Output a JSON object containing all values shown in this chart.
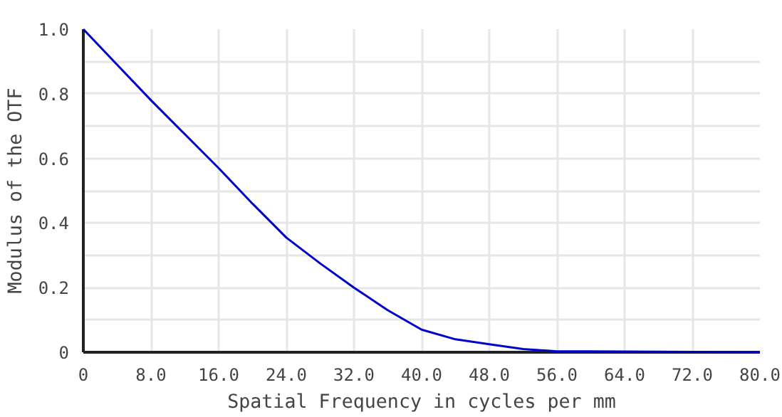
{
  "chart_data": {
    "type": "line",
    "xlabel": "Spatial Frequency in cycles per mm",
    "ylabel": "Modulus of the OTF",
    "x": [
      0,
      4,
      8,
      12,
      16,
      20,
      24,
      28,
      32,
      36,
      40,
      44,
      48,
      52,
      56,
      60,
      64,
      72,
      80
    ],
    "series": [
      {
        "color": "#0000cc",
        "values": [
          1.0,
          0.89,
          0.78,
          0.675,
          0.57,
          0.46,
          0.355,
          0.275,
          0.2,
          0.13,
          0.07,
          0.04,
          0.025,
          0.01,
          0.003,
          0.003,
          0.002,
          0.001,
          0.0
        ]
      }
    ],
    "xlim": [
      0,
      80
    ],
    "ylim": [
      0,
      1
    ],
    "xticks": [
      {
        "value": 0,
        "label": "0"
      },
      {
        "value": 8,
        "label": "8.0"
      },
      {
        "value": 16,
        "label": "16.0"
      },
      {
        "value": 24,
        "label": "24.0"
      },
      {
        "value": 32,
        "label": "32.0"
      },
      {
        "value": 40,
        "label": "40.0"
      },
      {
        "value": 48,
        "label": "48.0"
      },
      {
        "value": 56,
        "label": "56.0"
      },
      {
        "value": 64,
        "label": "64.0"
      },
      {
        "value": 72,
        "label": "72.0"
      },
      {
        "value": 80,
        "label": "80.0"
      }
    ],
    "yticks": [
      0,
      {
        "value": 0.1,
        "label": null
      },
      0.2,
      {
        "value": 0.3,
        "label": null
      },
      0.4,
      {
        "value": 0.5,
        "label": null
      },
      0.6,
      {
        "value": 0.7,
        "label": null
      },
      0.8,
      {
        "value": 0.9,
        "label": null
      },
      {
        "value": 1.0,
        "label": "1.0"
      }
    ],
    "grid": true,
    "marker": "none",
    "line_style": "solid"
  }
}
